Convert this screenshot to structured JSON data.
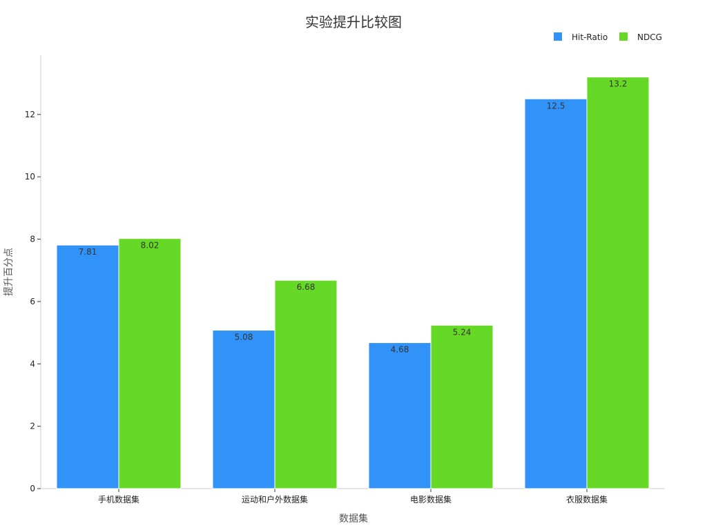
{
  "chart_data": {
    "type": "bar",
    "title": "实验提升比较图",
    "xlabel": "数据集",
    "ylabel": "提升百分点",
    "categories": [
      "手机数据集",
      "运动和户外数据集",
      "电影数据集",
      "衣服数据集"
    ],
    "series": [
      {
        "name": "Hit-Ratio",
        "color": "#3192f7",
        "values": [
          7.81,
          5.08,
          4.68,
          12.5
        ]
      },
      {
        "name": "NDCG",
        "color": "#66d926",
        "values": [
          8.02,
          6.68,
          5.24,
          13.2
        ]
      }
    ],
    "ylim": [
      0,
      13.9
    ],
    "yticks": [
      0,
      2,
      4,
      6,
      8,
      10,
      12
    ],
    "grid": false,
    "legend_position": "top-right",
    "data_labels": [
      "7.81",
      "5.08",
      "4.68",
      "12.5",
      "8.02",
      "6.68",
      "5.24",
      "13.2"
    ]
  }
}
